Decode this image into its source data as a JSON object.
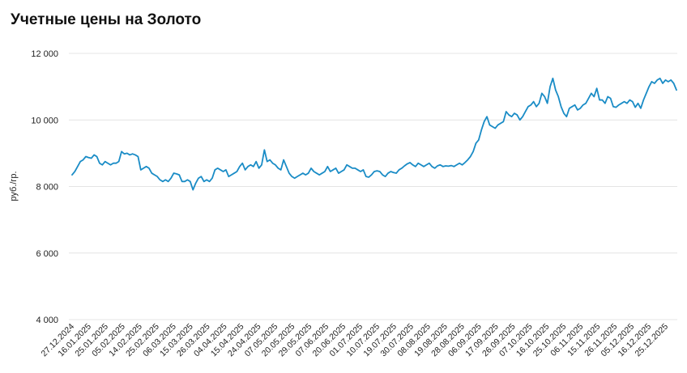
{
  "page": {
    "title": "Учетные цены на Золото"
  },
  "chart_data": {
    "type": "line",
    "title": "Учетные цены на Золото",
    "ylabel": "руб./гр.",
    "xlabel": "",
    "ylim": [
      4000,
      12000
    ],
    "yticks": [
      4000,
      6000,
      8000,
      10000,
      12000
    ],
    "ytick_labels": [
      "4 000",
      "6 000",
      "8 000",
      "10 000",
      "12 000"
    ],
    "grid": true,
    "line_color": "#1a8cc6",
    "xtick_labels": [
      "27.12.2024",
      "16.01.2025",
      "25.01.2025",
      "05.02.2025",
      "14.02.2025",
      "25.02.2025",
      "06.03.2025",
      "15.03.2025",
      "26.03.2025",
      "04.04.2025",
      "15.04.2025",
      "24.04.2025",
      "07.05.2025",
      "20.05.2025",
      "29.05.2025",
      "07.06.2025",
      "20.06.2025",
      "01.07.2025",
      "10.07.2025",
      "19.07.2025",
      "30.07.2025",
      "08.08.2025",
      "19.08.2025",
      "28.08.2025",
      "06.09.2025",
      "17.09.2025",
      "26.09.2025",
      "07.10.2025",
      "16.10.2025",
      "25.10.2025",
      "06.11.2025",
      "15.11.2025",
      "26.11.2025",
      "05.12.2025",
      "16.12.2025",
      "25.12.2025"
    ],
    "series": [
      {
        "values": [
          8350,
          8450,
          8600,
          8750,
          8800,
          8900,
          8870,
          8850,
          8950,
          8900,
          8700,
          8650,
          8750,
          8700,
          8650,
          8700,
          8700,
          8750,
          9050,
          8980,
          9000,
          8950,
          8980,
          8950,
          8900,
          8500,
          8550,
          8600,
          8550,
          8400,
          8350,
          8300,
          8200,
          8150,
          8200,
          8150,
          8250,
          8400,
          8380,
          8350,
          8150,
          8150,
          8200,
          8150,
          7900,
          8100,
          8250,
          8300,
          8150,
          8200,
          8150,
          8250,
          8500,
          8550,
          8500,
          8450,
          8500,
          8300,
          8350,
          8400,
          8450,
          8600,
          8700,
          8500,
          8600,
          8650,
          8600,
          8750,
          8550,
          8650,
          9100,
          8750,
          8800,
          8700,
          8650,
          8550,
          8500,
          8800,
          8600,
          8400,
          8300,
          8250,
          8300,
          8350,
          8400,
          8350,
          8400,
          8550,
          8450,
          8400,
          8350,
          8400,
          8450,
          8600,
          8450,
          8500,
          8550,
          8400,
          8450,
          8500,
          8650,
          8600,
          8550,
          8550,
          8500,
          8450,
          8500,
          8300,
          8280,
          8350,
          8450,
          8470,
          8450,
          8350,
          8300,
          8400,
          8450,
          8420,
          8400,
          8500,
          8550,
          8620,
          8680,
          8720,
          8650,
          8600,
          8700,
          8650,
          8600,
          8650,
          8700,
          8600,
          8550,
          8620,
          8650,
          8600,
          8620,
          8610,
          8630,
          8600,
          8650,
          8700,
          8650,
          8720,
          8800,
          8900,
          9050,
          9300,
          9400,
          9700,
          9950,
          10100,
          9850,
          9800,
          9750,
          9850,
          9900,
          9950,
          10250,
          10150,
          10100,
          10200,
          10150,
          10000,
          10100,
          10250,
          10400,
          10450,
          10550,
          10400,
          10500,
          10800,
          10700,
          10500,
          11000,
          11250,
          10900,
          10700,
          10400,
          10200,
          10100,
          10350,
          10400,
          10450,
          10300,
          10350,
          10450,
          10500,
          10650,
          10800,
          10700,
          10950,
          10600,
          10600,
          10500,
          10700,
          10650,
          10400,
          10380,
          10450,
          10500,
          10550,
          10500,
          10600,
          10550,
          10380,
          10500,
          10350,
          10600,
          10800,
          11000,
          11150,
          11100,
          11200,
          11250,
          11100,
          11200,
          11150,
          11200,
          11100,
          10900
        ]
      }
    ]
  }
}
